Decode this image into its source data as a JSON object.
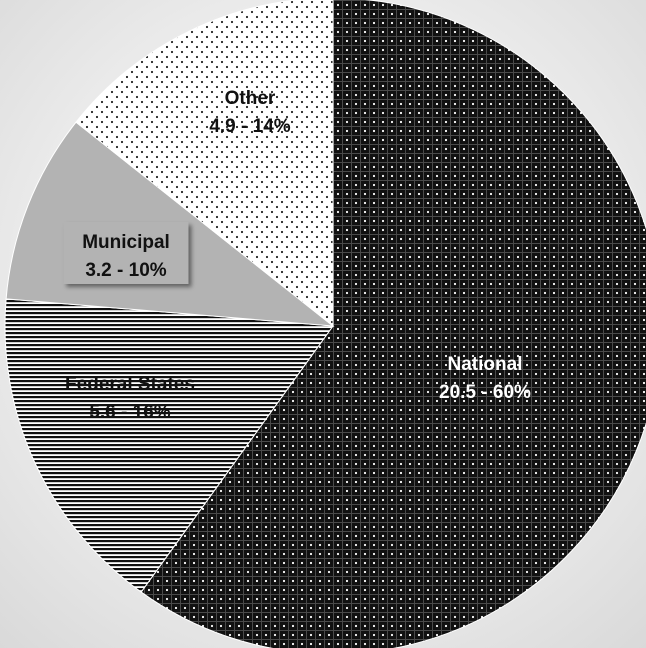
{
  "chart_data": {
    "type": "pie",
    "start_angle_deg": 0,
    "direction": "clockwise",
    "slices": [
      {
        "name": "National",
        "value": 20.5,
        "percent": "60%",
        "label": "20.5 - 60%",
        "fill": "#111111",
        "pattern": "grid-dots",
        "text_color": "#ffffff"
      },
      {
        "name": "Federal States",
        "value": 5.6,
        "percent": "16%",
        "label": "5.6 - 16%",
        "fill": "#ffffff",
        "pattern": "horizontal-lines",
        "text_color": "#111111"
      },
      {
        "name": "Municipal",
        "value": 3.2,
        "percent": "10%",
        "label": "3.2 - 10%",
        "fill": "#b3b3b3",
        "pattern": "solid",
        "text_color": "#111111"
      },
      {
        "name": "Other",
        "value": 4.9,
        "percent": "14%",
        "label": "4.9 - 14%",
        "fill": "#ffffff",
        "pattern": "sparse-dots",
        "text_color": "#111111"
      }
    ]
  }
}
